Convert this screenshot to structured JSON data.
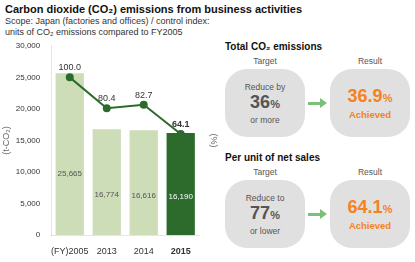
{
  "chart_data": {
    "type": "bar",
    "title": "Carbon dioxide (CO₂) emissions from business activities",
    "subtitle": [
      "Scope: Japan (factories and offices) / control index:",
      "units of CO₂ emissions compared to FY2005"
    ],
    "ylabel": "(t-CO₂)",
    "y2label": "(%)",
    "categories": [
      "(FY)2005",
      "2013",
      "2014",
      "2015"
    ],
    "series": [
      {
        "type": "bar",
        "colors": [
          "#ccddb8",
          "#ccddb8",
          "#ccddb8",
          "#2d6b2d"
        ],
        "values": [
          25665,
          16774,
          16616,
          16190
        ],
        "value_labels": [
          "25,665",
          "16,774",
          "16,616",
          "16,190"
        ]
      },
      {
        "type": "line",
        "axis": "y2",
        "color": "#2d6b2d",
        "marker": "circle",
        "values": [
          100.0,
          80.4,
          82.7,
          64.1
        ],
        "value_labels": [
          "100.0",
          "80.4",
          "82.7",
          "64.1"
        ]
      }
    ],
    "ylim": [
      0,
      30000
    ],
    "yticks": [
      0,
      {
        "value": 5000,
        "label": "5,000"
      },
      {
        "value": 10000,
        "label": "10,000"
      },
      {
        "value": 15000,
        "label": "15,000"
      },
      {
        "value": 20000,
        "label": "20,000"
      },
      {
        "value": 25000,
        "label": "25,000"
      },
      {
        "value": 30000,
        "label": "30,000"
      }
    ],
    "y2lim": [
      0,
      120
    ],
    "y2ticks": [],
    "grid": false,
    "data_labels": true,
    "annotations": [
      {
        "title": "Total CO₂ emissions",
        "target_label": "Target",
        "target_top": "Reduce by",
        "target_value": "36",
        "target_unit": "%",
        "target_bottom": "or more",
        "result_label": "Result",
        "result_value": "36.9",
        "result_unit": "%",
        "result_note": "Achieved",
        "color": "#f5821f"
      },
      {
        "title": "Per unit of net sales",
        "target_label": "Target",
        "target_top": "Reduce to",
        "target_value": "77",
        "target_unit": "%",
        "target_bottom": "or lower",
        "result_label": "Result",
        "result_value": "64.1",
        "result_unit": "%",
        "result_note": "Achieved",
        "color": "#f5821f"
      }
    ]
  }
}
